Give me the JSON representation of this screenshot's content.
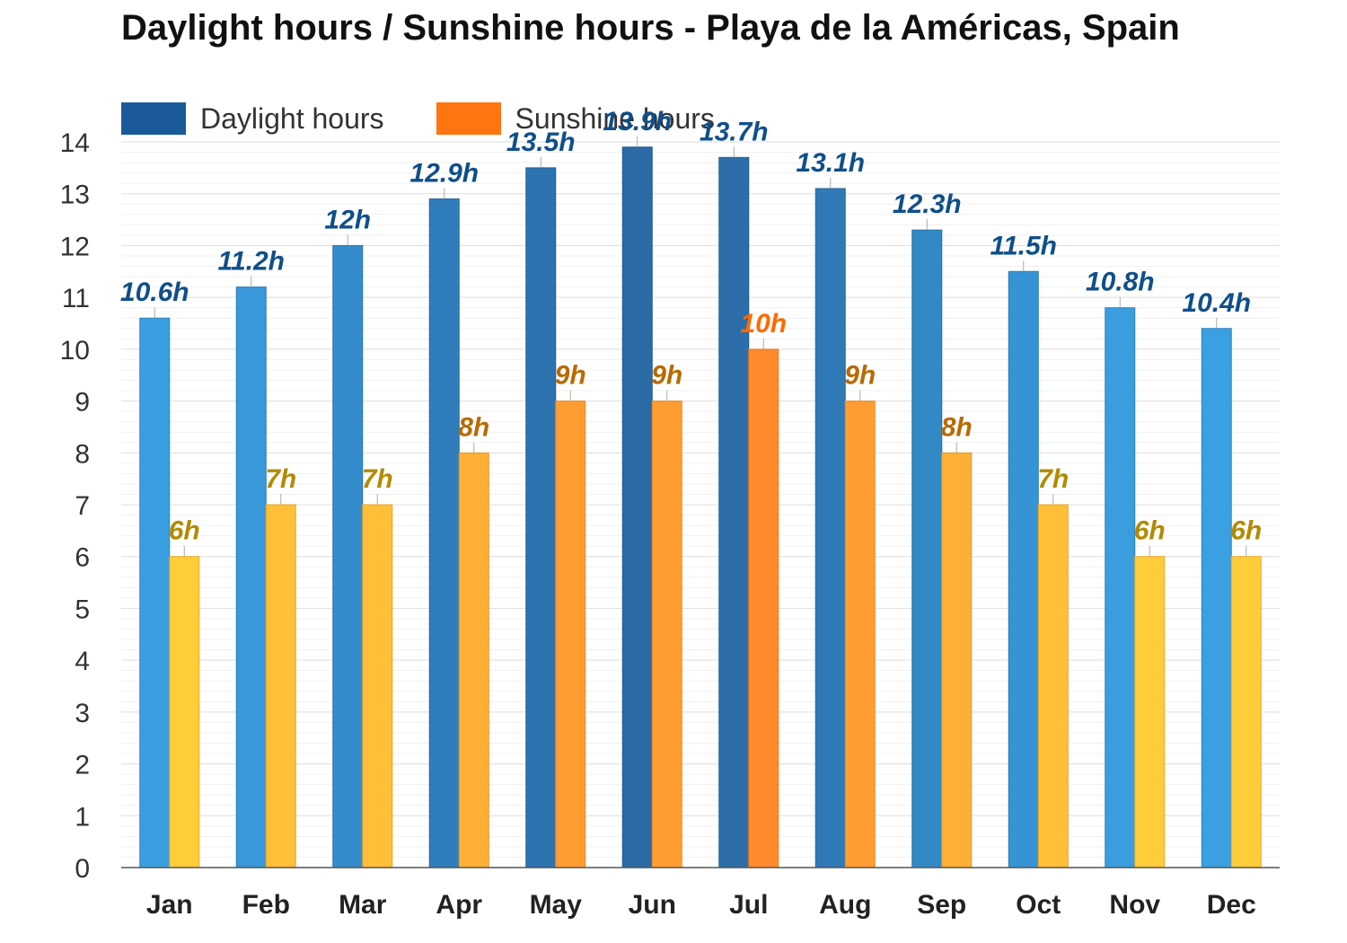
{
  "chart_data": {
    "type": "bar",
    "title": "Daylight hours / Sunshine hours - Playa de la Américas, Spain",
    "categories": [
      "Jan",
      "Feb",
      "Mar",
      "Apr",
      "May",
      "Jun",
      "Jul",
      "Aug",
      "Sep",
      "Oct",
      "Nov",
      "Dec"
    ],
    "series": [
      {
        "name": "Daylight hours",
        "color": "#1a5a9a",
        "values": [
          10.6,
          11.2,
          12,
          12.9,
          13.5,
          13.9,
          13.7,
          13.1,
          12.3,
          11.5,
          10.8,
          10.4
        ],
        "labels": [
          "10.6h",
          "11.2h",
          "12h",
          "12.9h",
          "13.5h",
          "13.9h",
          "13.7h",
          "13.1h",
          "12.3h",
          "11.5h",
          "10.8h",
          "10.4h"
        ]
      },
      {
        "name": "Sunshine hours",
        "color": "#ff7510",
        "values": [
          6,
          7,
          7,
          8,
          9,
          9,
          10,
          9,
          8,
          7,
          6,
          6
        ],
        "labels": [
          "6h",
          "7h",
          "7h",
          "8h",
          "9h",
          "9h",
          "10h",
          "9h",
          "8h",
          "7h",
          "6h",
          "6h"
        ]
      }
    ],
    "yticks": [
      "0",
      "1",
      "2",
      "3",
      "4",
      "5",
      "6",
      "7",
      "8",
      "9",
      "10",
      "11",
      "12",
      "13",
      "14"
    ],
    "ylim": [
      0,
      14
    ],
    "grid": true,
    "legend": "top-left"
  }
}
